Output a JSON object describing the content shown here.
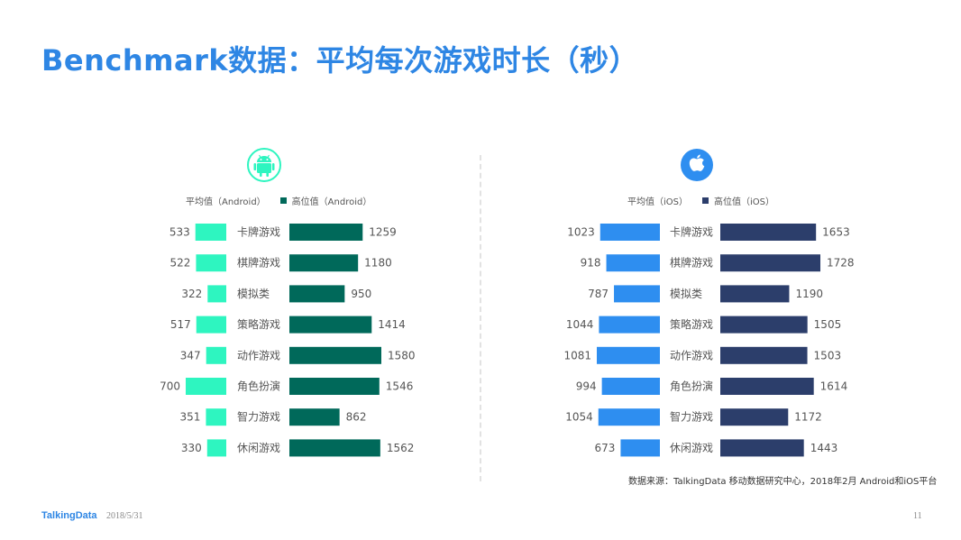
{
  "title": "Benchmark数据：平均每次游戏时长（秒）",
  "footer": {
    "logo": "TalkingData",
    "date": "2018/5/31",
    "page": "11"
  },
  "source": "数据来源：TalkingData 移动数据研究中心，2018年2月 Android和iOS平台",
  "icons": {
    "left": "android-icon",
    "right": "apple-icon"
  },
  "chart_data": [
    {
      "type": "bar",
      "platform": "Android",
      "categories": [
        "卡牌游戏",
        "棋牌游戏",
        "模拟类",
        "策略游戏",
        "动作游戏",
        "角色扮演",
        "智力游戏",
        "休闲游戏"
      ],
      "series": [
        {
          "name": "平均值（Android）",
          "color": "#2ef5c0",
          "values": [
            533,
            522,
            322,
            517,
            347,
            700,
            351,
            330
          ]
        },
        {
          "name": "高位值（Android）",
          "color": "#00695a",
          "values": [
            1259,
            1180,
            950,
            1414,
            1580,
            1546,
            862,
            1562
          ]
        }
      ]
    },
    {
      "type": "bar",
      "platform": "iOS",
      "categories": [
        "卡牌游戏",
        "棋牌游戏",
        "模拟类",
        "策略游戏",
        "动作游戏",
        "角色扮演",
        "智力游戏",
        "休闲游戏"
      ],
      "series": [
        {
          "name": "平均值（iOS）",
          "color": "#2e8ef0",
          "values": [
            1023,
            918,
            787,
            1044,
            1081,
            994,
            1054,
            673
          ]
        },
        {
          "name": "高位值（iOS）",
          "color": "#2c3e6b",
          "values": [
            1653,
            1728,
            1190,
            1505,
            1503,
            1614,
            1172,
            1443
          ]
        }
      ]
    }
  ]
}
